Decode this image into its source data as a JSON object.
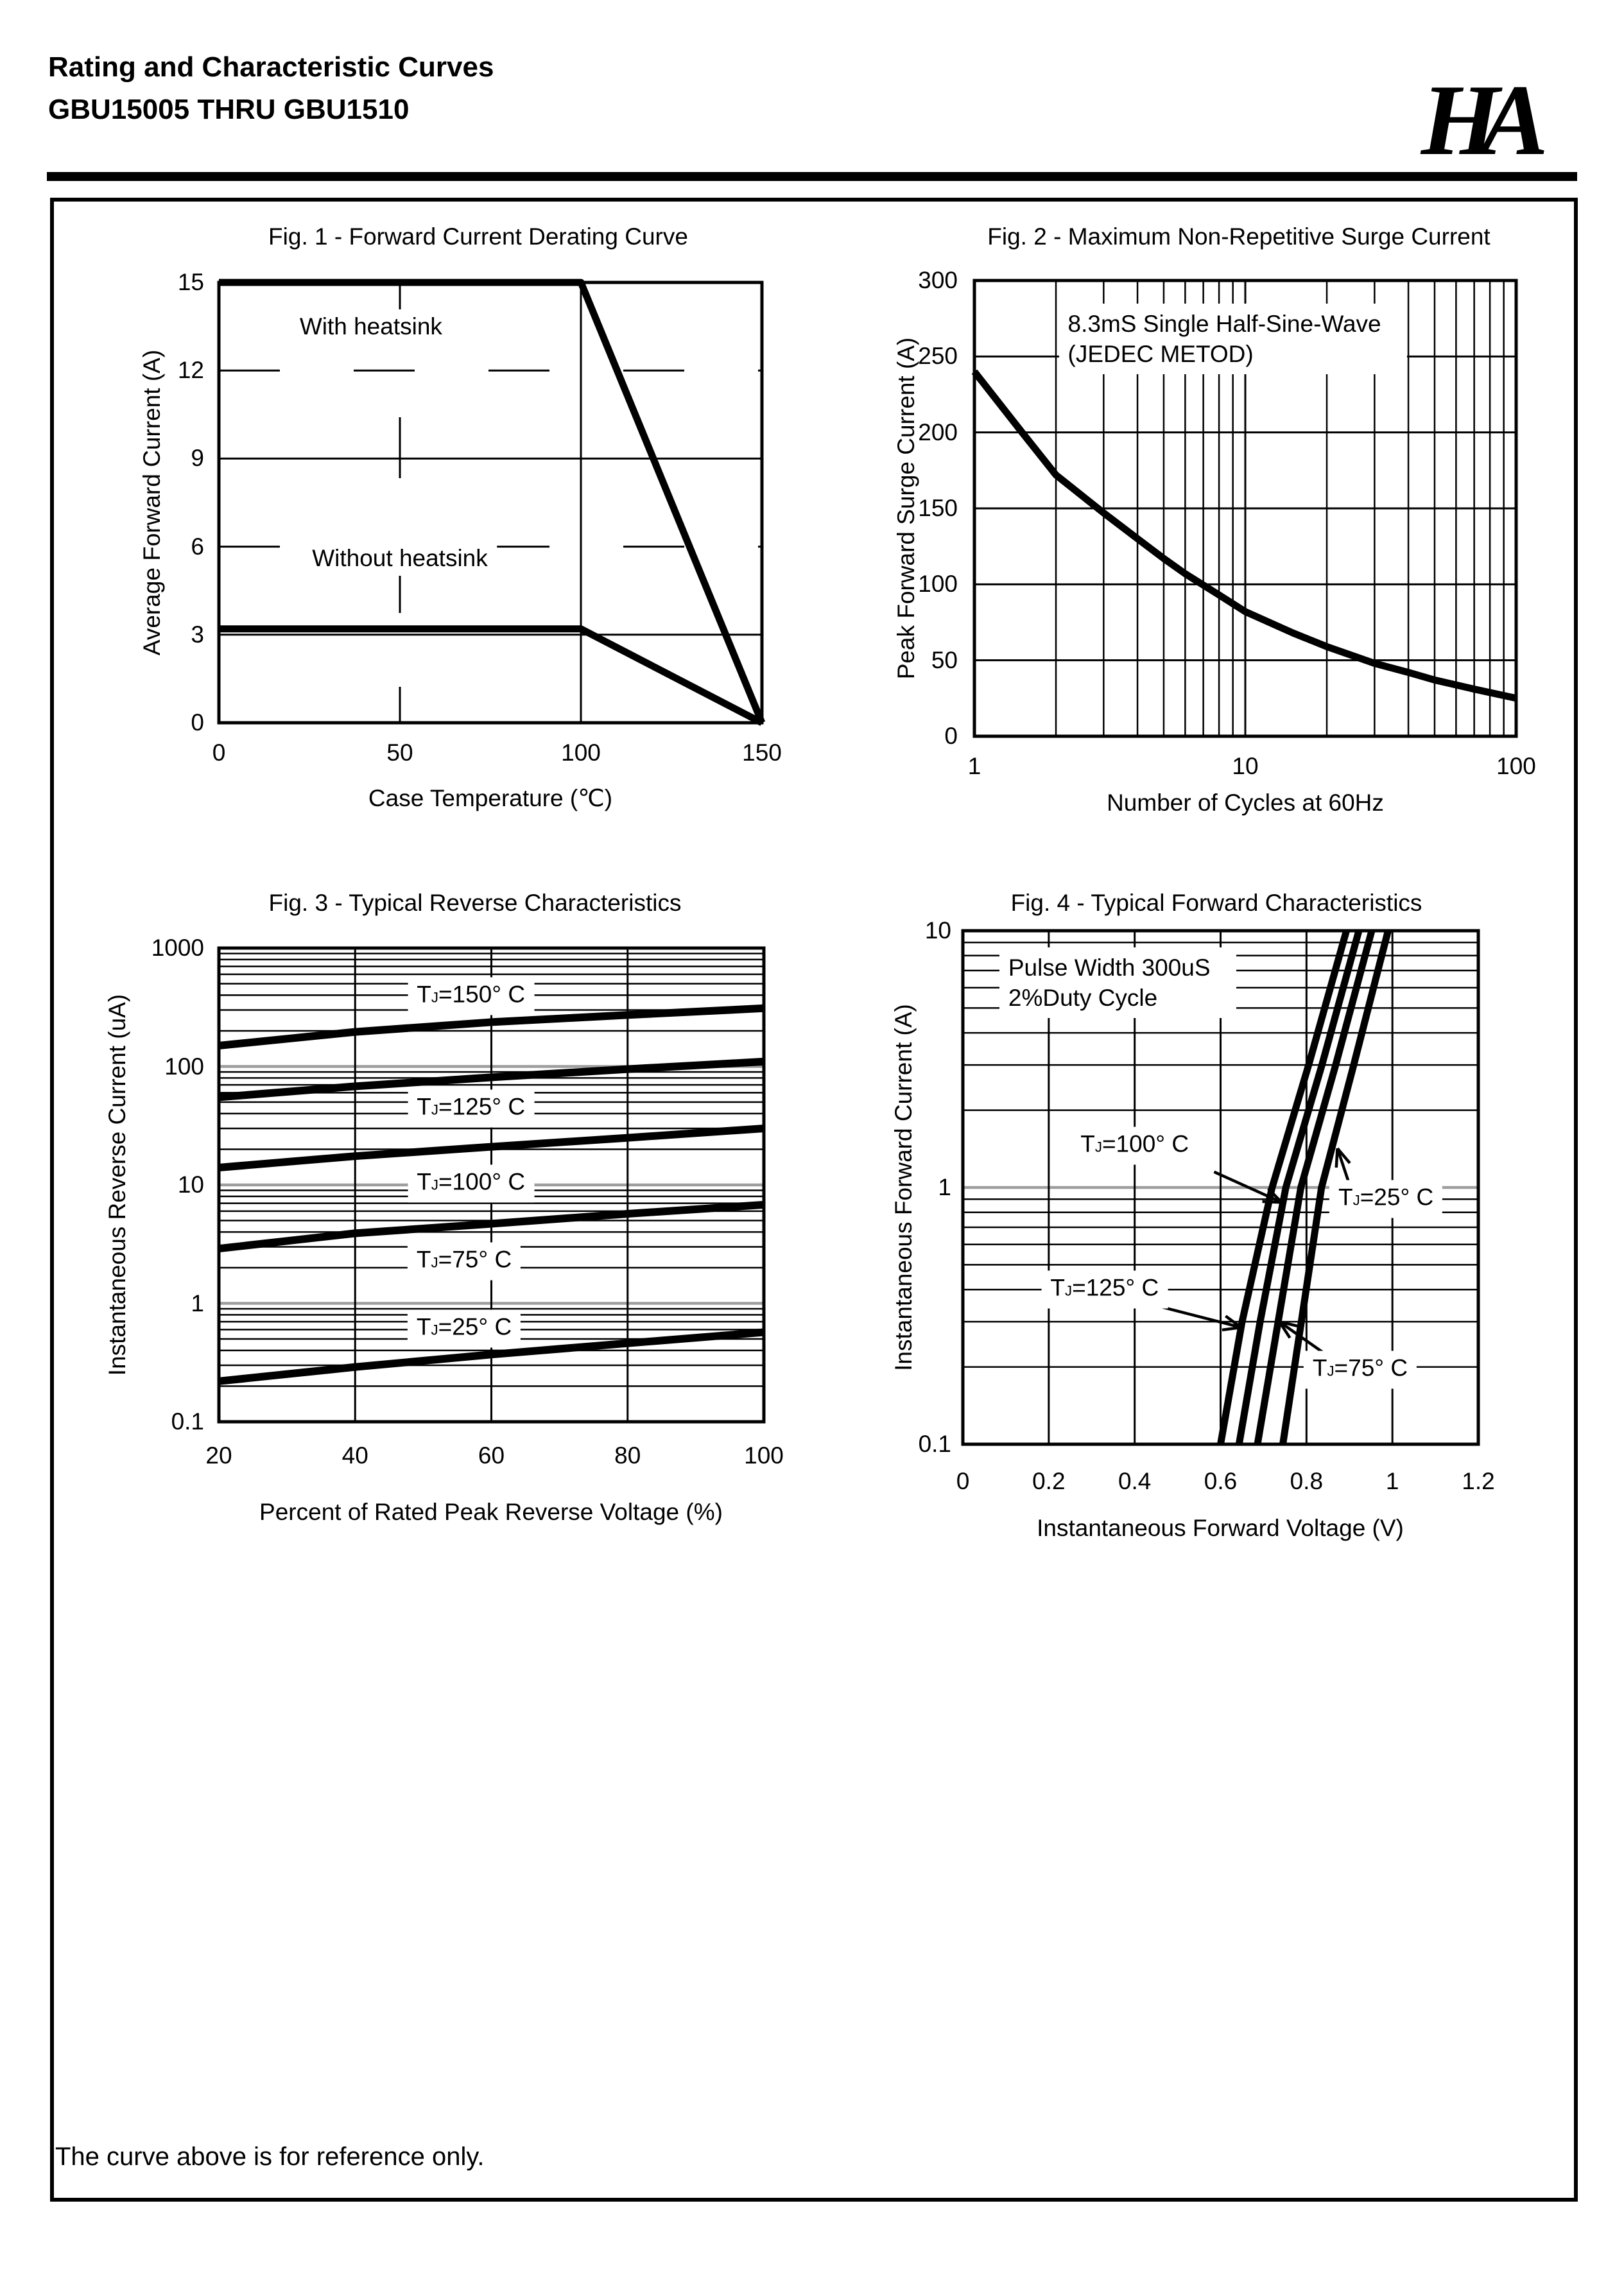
{
  "header": {
    "title_line1": "Rating and Characteristic Curves",
    "title_line2": "GBU15005 THRU GBU1510",
    "logo_text": "HA"
  },
  "footer_note": "The curve above is for reference only.",
  "colors": {
    "ink": "#000000",
    "decade_grid": "#9e9e9e",
    "paper": "#ffffff"
  },
  "chart_data": [
    {
      "id": "fig1",
      "type": "line",
      "title": "Fig. 1 - Forward Current Derating Curve",
      "xlabel": "Case Temperature (℃)",
      "ylabel": "Average Forward Current (A)",
      "x_scale": "linear",
      "xlim": [
        0,
        150
      ],
      "x_ticks": [
        0,
        50,
        100,
        150
      ],
      "y_scale": "linear",
      "ylim": [
        0,
        15
      ],
      "y_ticks": [
        0,
        3,
        6,
        9,
        12,
        15
      ],
      "grid": {
        "x_solid": [
          100
        ],
        "x_dashed": [
          50
        ],
        "y_solid": [
          3,
          9
        ],
        "y_dashed": [
          6,
          12
        ]
      },
      "series": [
        {
          "name": "With heatsink",
          "points": [
            [
              0,
              15
            ],
            [
              100,
              15
            ],
            [
              150,
              0
            ]
          ]
        },
        {
          "name": "Without heatsink",
          "points": [
            [
              0,
              3.2
            ],
            [
              100,
              3.2
            ],
            [
              150,
              0
            ]
          ]
        }
      ],
      "labels": [
        {
          "text": "With heatsink",
          "x": 42,
          "y": 13.5
        },
        {
          "text": "Without heatsink",
          "x": 50,
          "y": 5.6
        }
      ]
    },
    {
      "id": "fig2",
      "type": "line",
      "title": "Fig. 2 - Maximum Non-Repetitive Surge Current",
      "xlabel": "Number of Cycles at 60Hz",
      "ylabel": "Peak Forward Surge Current (A)",
      "x_scale": "log",
      "xlim": [
        1,
        100
      ],
      "x_ticks": [
        1,
        10,
        100
      ],
      "y_scale": "linear",
      "ylim": [
        0,
        300
      ],
      "y_ticks": [
        0,
        50,
        100,
        150,
        200,
        250,
        300
      ],
      "grid": {
        "y_solid": [
          50,
          100,
          150,
          200,
          250
        ]
      },
      "series": [
        {
          "name": "surge current",
          "points": [
            [
              1,
              240
            ],
            [
              1.5,
              200
            ],
            [
              2,
              172
            ],
            [
              3,
              147
            ],
            [
              4,
              130
            ],
            [
              5,
              117
            ],
            [
              6,
              107
            ],
            [
              8,
              93
            ],
            [
              10,
              82
            ],
            [
              15,
              68
            ],
            [
              20,
              59
            ],
            [
              30,
              48
            ],
            [
              40,
              42
            ],
            [
              50,
              37
            ],
            [
              70,
              31
            ],
            [
              100,
              25
            ]
          ]
        }
      ],
      "annotations": [
        {
          "lines": [
            "8.3mS Single Half-Sine-Wave",
            "(JEDEC METOD)"
          ],
          "x": 2.05,
          "y": 285
        }
      ],
      "labels": []
    },
    {
      "id": "fig3",
      "type": "line",
      "title": "Fig. 3 - Typical Reverse Characteristics",
      "xlabel": "Percent of Rated Peak Reverse Voltage (%)",
      "ylabel": "Instantaneous Reverse Current (uA)",
      "x_scale": "linear",
      "xlim": [
        20,
        100
      ],
      "x_ticks": [
        20,
        40,
        60,
        80,
        100
      ],
      "y_scale": "log",
      "ylim": [
        0.1,
        1000
      ],
      "y_ticks": [
        1000,
        100,
        10,
        1,
        0.1
      ],
      "grid": {
        "x_solid": [
          40,
          60,
          80
        ]
      },
      "series": [
        {
          "name": "TJ=150° C",
          "points": [
            [
              20,
              150
            ],
            [
              40,
              196
            ],
            [
              60,
              237
            ],
            [
              80,
              272
            ],
            [
              100,
              310
            ]
          ]
        },
        {
          "name": "TJ=125° C",
          "points": [
            [
              20,
              55
            ],
            [
              40,
              68
            ],
            [
              60,
              81
            ],
            [
              80,
              95
            ],
            [
              100,
              110
            ]
          ]
        },
        {
          "name": "TJ=100° C",
          "points": [
            [
              20,
              14
            ],
            [
              40,
              17.5
            ],
            [
              60,
              21
            ],
            [
              80,
              25
            ],
            [
              100,
              30
            ]
          ]
        },
        {
          "name": "TJ=75° C",
          "points": [
            [
              20,
              2.9
            ],
            [
              40,
              3.9
            ],
            [
              60,
              4.7
            ],
            [
              80,
              5.7
            ],
            [
              100,
              6.8
            ]
          ]
        },
        {
          "name": "TJ=25° C",
          "points": [
            [
              20,
              0.22
            ],
            [
              40,
              0.29
            ],
            [
              60,
              0.37
            ],
            [
              80,
              0.46
            ],
            [
              100,
              0.57
            ]
          ]
        }
      ],
      "labels": [
        {
          "text": "TJ=150° C",
          "x": 57,
          "y": 390
        },
        {
          "text": "TJ=125° C",
          "x": 57,
          "y": 44
        },
        {
          "text": "TJ=100° C",
          "x": 57,
          "y": 10.2
        },
        {
          "text": "TJ=75° C",
          "x": 56,
          "y": 2.26
        },
        {
          "text": "TJ=25° C",
          "x": 56,
          "y": 0.61
        }
      ]
    },
    {
      "id": "fig4",
      "type": "line",
      "title": "Fig. 4 - Typical Forward Characteristics",
      "xlabel": "Instantaneous Forward Voltage (V)",
      "ylabel": "Instantaneous Forward Current (A)",
      "x_scale": "linear",
      "xlim": [
        0,
        1.2
      ],
      "x_ticks": [
        0,
        0.2,
        0.4,
        0.6,
        0.8,
        1,
        1.2
      ],
      "y_scale": "log",
      "ylim": [
        0.1,
        10
      ],
      "y_ticks": [
        10,
        1,
        0.1
      ],
      "grid": {
        "x_solid": [
          0.2,
          0.4,
          0.6,
          0.8,
          1
        ]
      },
      "series": [
        {
          "name": "TJ=125° C",
          "points": [
            [
              0.6,
              0.1
            ],
            [
              0.65,
              0.3
            ],
            [
              0.72,
              1
            ],
            [
              0.805,
              3
            ],
            [
              0.893,
              10
            ]
          ]
        },
        {
          "name": "TJ=100° C",
          "points": [
            [
              0.643,
              0.1
            ],
            [
              0.692,
              0.3
            ],
            [
              0.752,
              1
            ],
            [
              0.836,
              3
            ],
            [
              0.922,
              10
            ]
          ]
        },
        {
          "name": "TJ=75° C",
          "points": [
            [
              0.686,
              0.1
            ],
            [
              0.734,
              0.3
            ],
            [
              0.787,
              1
            ],
            [
              0.868,
              3
            ],
            [
              0.952,
              10
            ]
          ]
        },
        {
          "name": "TJ=25° C",
          "points": [
            [
              0.745,
              0.1
            ],
            [
              0.788,
              0.3
            ],
            [
              0.835,
              1
            ],
            [
              0.91,
              3
            ],
            [
              0.99,
              10
            ]
          ]
        }
      ],
      "annotations": [
        {
          "lines": [
            "Pulse Width 300uS",
            "2%Duty Cycle"
          ],
          "x": 0.085,
          "y": 8.6
        }
      ],
      "labels": [
        {
          "text": "TJ=100° C",
          "x": 0.4,
          "y": 1.45,
          "arrow": {
            "from": [
              0.585,
              1.15
            ],
            "to": [
              0.742,
              0.875
            ]
          }
        },
        {
          "text": "TJ=25° C",
          "x": 0.985,
          "y": 0.9,
          "arrow": {
            "from": [
              0.905,
              0.97
            ],
            "to": [
              0.872,
              1.42
            ]
          }
        },
        {
          "text": "TJ=125° C",
          "x": 0.33,
          "y": 0.4,
          "arrow": {
            "from": [
              0.455,
              0.345
            ],
            "to": [
              0.648,
              0.285
            ]
          }
        },
        {
          "text": "TJ=75° C",
          "x": 0.925,
          "y": 0.195,
          "arrow": {
            "from": [
              0.843,
              0.225
            ],
            "to": [
              0.737,
              0.3
            ]
          }
        }
      ]
    }
  ]
}
